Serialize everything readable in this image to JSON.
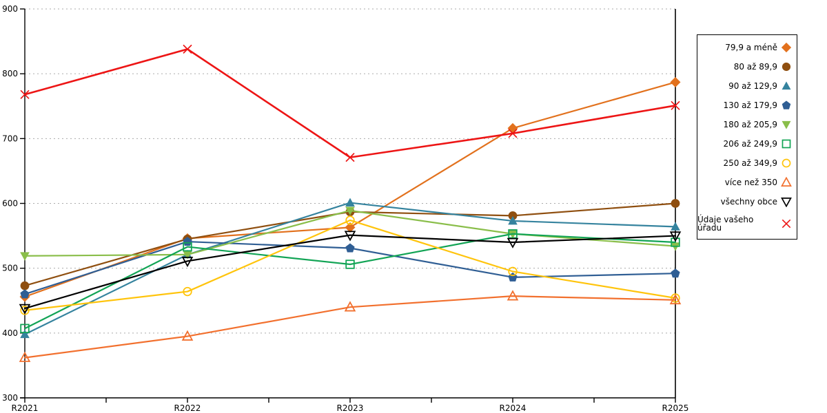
{
  "chart_data": {
    "type": "line",
    "title": "",
    "xlabel": "",
    "ylabel": "",
    "categories": [
      "R2021",
      "R2022",
      "R2023",
      "R2024",
      "R2025"
    ],
    "ylim": [
      300,
      900
    ],
    "ytick_step": 100,
    "grid": "horizontal-dotted",
    "minor_x_ticks_between_categories": true,
    "legend_position": "right",
    "axis_color": "#000000",
    "grid_color": "#aaaaaa",
    "series": [
      {
        "name": "79,9 a méně",
        "marker": "diamond",
        "color": "#e2711d",
        "values": [
          456,
          546,
          563,
          716,
          787
        ]
      },
      {
        "name": "80 až 89,9",
        "marker": "circle",
        "color": "#8f4f10",
        "values": [
          473,
          545,
          587,
          581,
          600
        ]
      },
      {
        "name": "90 až 129,9",
        "marker": "triangle-up",
        "color": "#35839e",
        "values": [
          398,
          521,
          601,
          573,
          564
        ]
      },
      {
        "name": "130 až 179,9",
        "marker": "pentagon",
        "color": "#2f5e94",
        "values": [
          460,
          541,
          531,
          486,
          492
        ]
      },
      {
        "name": "180 až 205,9",
        "marker": "triangle-down",
        "color": "#8abe4a",
        "values": [
          519,
          521,
          589,
          553,
          534
        ]
      },
      {
        "name": "206 až 249,9",
        "marker": "square-open",
        "color": "#12a455",
        "values": [
          407,
          533,
          506,
          553,
          540
        ]
      },
      {
        "name": "250 až 349,9",
        "marker": "circle-open",
        "color": "#ffc40c",
        "values": [
          435,
          464,
          574,
          495,
          454
        ]
      },
      {
        "name": "více než 350",
        "marker": "triangle-up-open",
        "color": "#f2702e",
        "values": [
          362,
          395,
          440,
          457,
          451
        ]
      },
      {
        "name": "všechny obce",
        "marker": "triangle-down-open",
        "color": "#000000",
        "values": [
          438,
          511,
          551,
          540,
          550
        ]
      },
      {
        "name": "Údaje vašeho úřadu",
        "marker": "x-cross",
        "color": "#ed1515",
        "values": [
          768,
          838,
          671,
          708,
          751
        ]
      }
    ]
  }
}
